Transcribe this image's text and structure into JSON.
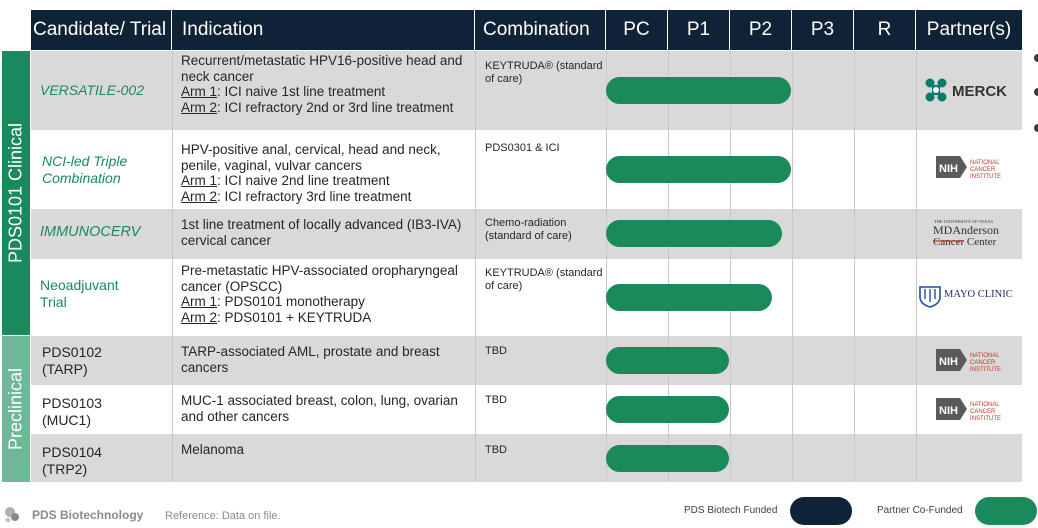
{
  "header": {
    "candidate": "Candidate/ Trial",
    "indication": "Indication",
    "combination": "Combination",
    "phases": [
      "PC",
      "P1",
      "P2",
      "P3",
      "R"
    ],
    "partners": "Partner(s)"
  },
  "sections": {
    "clinical": "PDS0101 Clinical",
    "preclinical": "Preclinical"
  },
  "rows": [
    {
      "candidate": "VERSATILE-002",
      "indication": "Recurrent/metastatic HPV16-positive head and neck cancer",
      "arm1_label": "Arm 1",
      "arm1_text": ": ICI naive 1st line treatment",
      "arm2_label": "Arm 2",
      "arm2_text": ": ICI refractory 2nd or 3rd line treatment",
      "combination": "KEYTRUDA® (standard of care)",
      "funding": "PDS Biotech Funded",
      "progress_phase": 2.0,
      "partner": "MERCK"
    },
    {
      "candidate": "NCI-led Triple Combination",
      "indication": "HPV-positive anal, cervical, head and neck, penile, vaginal, vulvar cancers",
      "arm1_label": "Arm 1",
      "arm1_text": ": ICI naive 2nd line treatment",
      "arm2_label": "Arm 2",
      "arm2_text": ": ICI refractory 3rd line treatment",
      "combination": "PDS0301 & ICI",
      "funding": "Partner Co-Funded",
      "progress_phase": 2.0,
      "partner": "NIH NATIONAL CANCER INSTITUTE"
    },
    {
      "candidate": "IMMUNOCERV",
      "indication": "1st line treatment of locally advanced (IB3-IVA) cervical cancer",
      "combination": "Chemo-radiation (standard of care)",
      "funding": "Partner Co-Funded",
      "progress_phase": 1.85,
      "partner": "THE UNIVERSITY OF TEXAS MD Anderson Cancer Center"
    },
    {
      "candidate": "Neoadjuvant Trial",
      "indication": "Pre-metastatic HPV-associated oropharyngeal cancer (OPSCC)",
      "arm1_label": "Arm 1",
      "arm1_text": ": PDS0101 monotherapy",
      "arm2_label": "Arm 2",
      "arm2_text": ": PDS0101 + KEYTRUDA",
      "combination": "KEYTRUDA® (standard of care)",
      "funding": "Partner Co-Funded",
      "progress_phase": 1.7,
      "partner": "MAYO CLINIC"
    },
    {
      "candidate": "PDS0102 (TARP)",
      "indication": "TARP-associated AML, prostate and breast cancers",
      "combination": "TBD",
      "funding": "Partner Co-Funded",
      "progress_phase": 1.0,
      "partner": "NIH NATIONAL CANCER INSTITUTE"
    },
    {
      "candidate": "PDS0103 (MUC1)",
      "indication": "MUC-1 associated breast, colon, lung, ovarian and other cancers",
      "combination": "TBD",
      "funding": "Partner Co-Funded",
      "progress_phase": 1.0,
      "partner": "NIH NATIONAL CANCER INSTITUTE"
    },
    {
      "candidate": "PDS0104 (TRP2)",
      "indication": "Melanoma",
      "combination": "TBD",
      "funding": "PDS Biotech Funded",
      "progress_phase": 1.0,
      "partner": ""
    }
  ],
  "footer": {
    "company": "PDS Biotechnology",
    "reference": "Reference: Data on file.",
    "legend_pds": "PDS  Biotech Funded",
    "legend_partner": "Partner Co-Funded"
  },
  "colors": {
    "navy": "#0f2236",
    "green": "#1a8a5a",
    "row_gray": "#d9d9d9"
  }
}
